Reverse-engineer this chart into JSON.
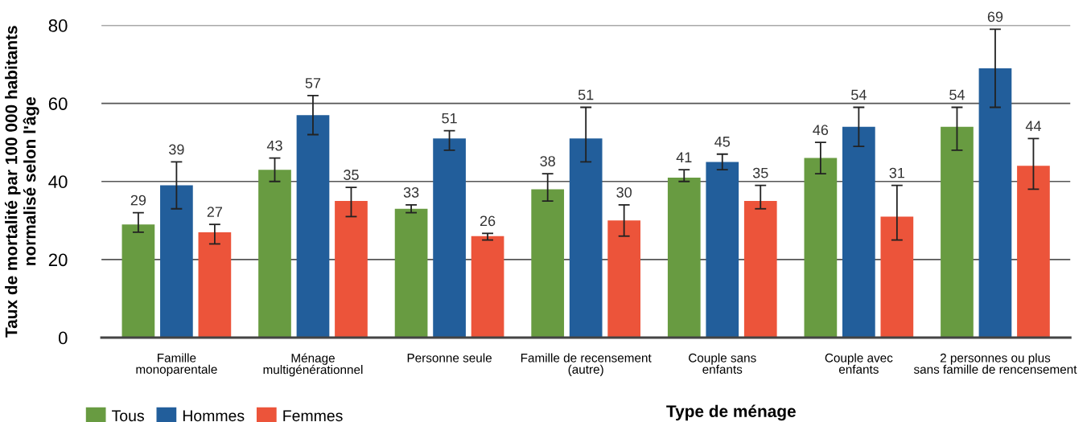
{
  "chart_data": {
    "type": "bar",
    "xlabel": "Type de ménage",
    "ylabel": "Taux de mortalité par 100 000 habitants\nnormalisé selon l'âge",
    "categories": [
      "Famille\nmonoparentale",
      "Ménage\nmultigénérationnel",
      "Personne seule",
      "Famille de recensement\n(autre)",
      "Couple sans\nenfants",
      "Couple avec\nenfants",
      "2 personnes ou plus\nsans famille de rencensement"
    ],
    "series": [
      {
        "name": "Tous",
        "color": "#689b41",
        "values": [
          29,
          43,
          33,
          38,
          41,
          46,
          54
        ],
        "errors": [
          [
            27,
            32
          ],
          [
            40,
            46
          ],
          [
            32,
            34
          ],
          [
            35,
            42
          ],
          [
            40,
            43
          ],
          [
            42,
            50
          ],
          [
            48,
            59
          ]
        ]
      },
      {
        "name": "Hommes",
        "color": "#225e9b",
        "values": [
          39,
          57,
          51,
          51,
          45,
          54,
          69
        ],
        "errors": [
          [
            33,
            45
          ],
          [
            52,
            62
          ],
          [
            48,
            53
          ],
          [
            45,
            59
          ],
          [
            43,
            47
          ],
          [
            49,
            59
          ],
          [
            59,
            79
          ]
        ]
      },
      {
        "name": "Femmes",
        "color": "#ec543a",
        "values": [
          27,
          35,
          26,
          30,
          35,
          31,
          44
        ],
        "errors": [
          [
            24,
            29
          ],
          [
            31,
            38.5
          ],
          [
            25,
            26.7
          ],
          [
            26,
            34
          ],
          [
            33,
            39
          ],
          [
            25,
            39
          ],
          [
            38,
            51
          ]
        ]
      }
    ],
    "ylim": [
      0,
      80
    ],
    "yticks": [
      0,
      20,
      40,
      60,
      80
    ],
    "grid": "y",
    "legend": "bottom left",
    "data_labels": true
  }
}
